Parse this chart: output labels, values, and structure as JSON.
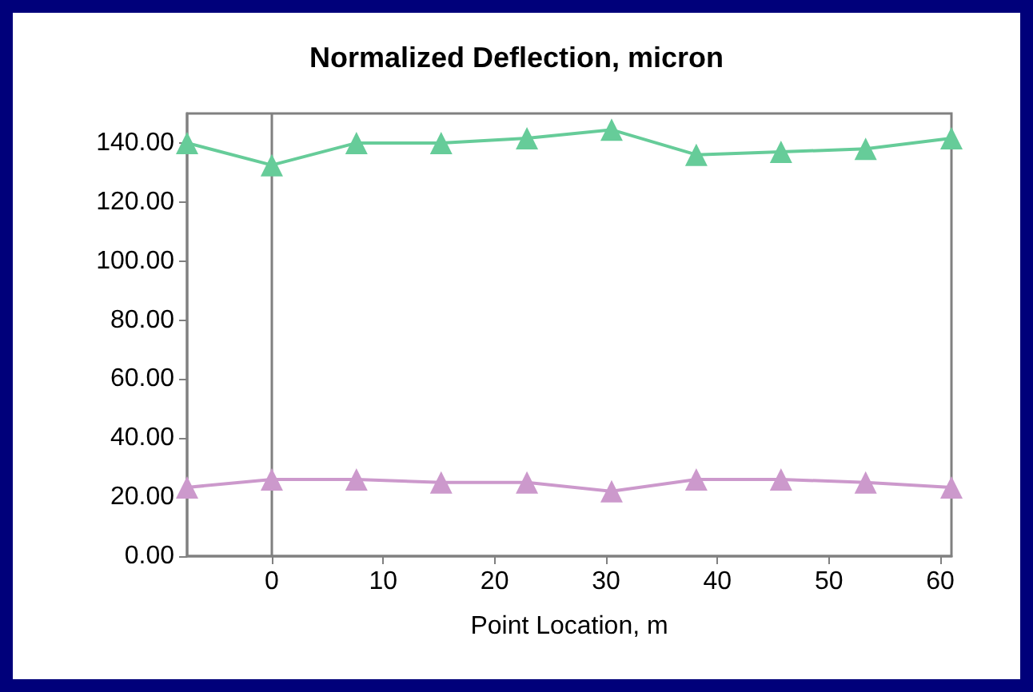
{
  "chart_data": {
    "type": "line",
    "title": "Normalized Deflection, micron",
    "xlabel": "Point Location, m",
    "x": [
      -7.6,
      0,
      7.6,
      15.2,
      22.9,
      30.5,
      38.1,
      45.7,
      53.3,
      61
    ],
    "series": [
      {
        "color": "#66cc99",
        "values": [
          140,
          132.5,
          140,
          140,
          141.6,
          144.5,
          136,
          137,
          138,
          141.6
        ]
      },
      {
        "color": "#cc99cc",
        "values": [
          23.3,
          26,
          26,
          25,
          25,
          22,
          26,
          26,
          25,
          23.3
        ]
      }
    ],
    "xlim": [
      -7.6,
      61
    ],
    "xticks": [
      0,
      10,
      20,
      30,
      40,
      50,
      60
    ],
    "ylim": [
      0,
      150
    ],
    "yticks": [
      {
        "value": 0,
        "label": "0.00"
      },
      {
        "value": 20,
        "label": "20.00"
      },
      {
        "value": 40,
        "label": "40.00"
      },
      {
        "value": 60,
        "label": "60.00"
      },
      {
        "value": 80,
        "label": "80.00"
      },
      {
        "value": 100,
        "label": "100.00"
      },
      {
        "value": 120,
        "label": "120.00"
      },
      {
        "value": 140,
        "label": "140.00"
      }
    ],
    "ref_lines": [
      {
        "axis": "x",
        "value": 0,
        "color": "#808080"
      }
    ],
    "marker": "triangle",
    "line_style": "solid"
  }
}
